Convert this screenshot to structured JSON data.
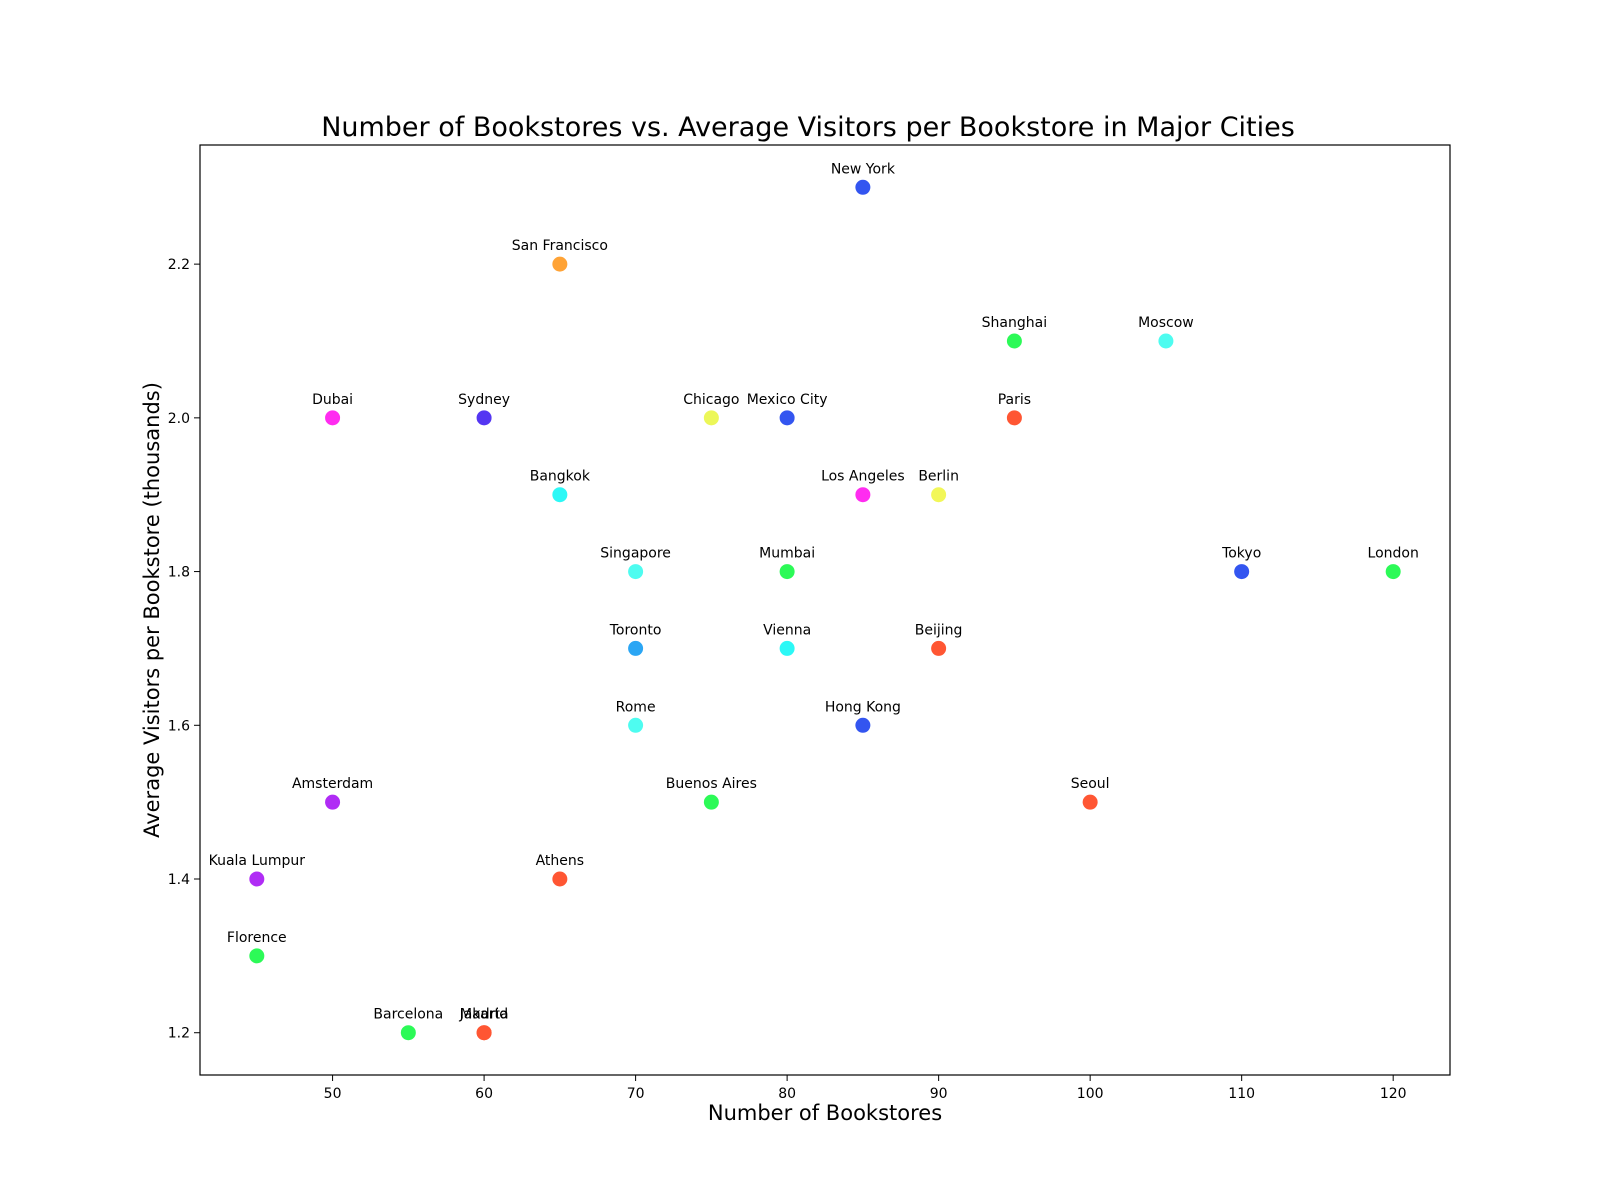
{
  "chart_data": {
    "type": "scatter",
    "title": "Number of Bookstores vs. Average Visitors per Bookstore in Major Cities",
    "xlabel": "Number of Bookstores",
    "ylabel": "Average Visitors per Bookstore (thousands)",
    "xlim": [
      41.25,
      123.75
    ],
    "ylim": [
      1.145,
      2.355
    ],
    "x_ticks": [
      50,
      60,
      70,
      80,
      90,
      100,
      110,
      120
    ],
    "y_ticks": [
      1.2,
      1.4,
      1.6,
      1.8,
      2.0,
      2.2
    ],
    "x_tick_labels": [
      "50",
      "60",
      "70",
      "80",
      "90",
      "100",
      "110",
      "120"
    ],
    "y_tick_labels": [
      "1.2",
      "1.4",
      "1.6",
      "1.8",
      "2.0",
      "2.2"
    ],
    "grid": false,
    "legend": "none",
    "points": [
      {
        "label": "New York",
        "x": 85,
        "y": 2.3,
        "color": "#3355f0"
      },
      {
        "label": "San Francisco",
        "x": 65,
        "y": 2.2,
        "color": "#ffa336"
      },
      {
        "label": "Shanghai",
        "x": 95,
        "y": 2.1,
        "color": "#2cfa57"
      },
      {
        "label": "Moscow",
        "x": 105,
        "y": 2.1,
        "color": "#4efcf0"
      },
      {
        "label": "Dubai",
        "x": 50,
        "y": 2.0,
        "color": "#ff2cf0"
      },
      {
        "label": "Sydney",
        "x": 60,
        "y": 2.0,
        "color": "#5436f2"
      },
      {
        "label": "Chicago",
        "x": 75,
        "y": 2.0,
        "color": "#ecf758"
      },
      {
        "label": "Mexico City",
        "x": 80,
        "y": 2.0,
        "color": "#3355f0"
      },
      {
        "label": "Paris",
        "x": 95,
        "y": 2.0,
        "color": "#ff5633"
      },
      {
        "label": "Bangkok",
        "x": 65,
        "y": 1.9,
        "color": "#2cf8f6"
      },
      {
        "label": "Los Angeles",
        "x": 85,
        "y": 1.9,
        "color": "#ff2cf0"
      },
      {
        "label": "Berlin",
        "x": 90,
        "y": 1.9,
        "color": "#f2f758"
      },
      {
        "label": "Singapore",
        "x": 70,
        "y": 1.8,
        "color": "#4efcf0"
      },
      {
        "label": "Mumbai",
        "x": 80,
        "y": 1.8,
        "color": "#2cfa57"
      },
      {
        "label": "Tokyo",
        "x": 110,
        "y": 1.8,
        "color": "#3355f0"
      },
      {
        "label": "London",
        "x": 120,
        "y": 1.8,
        "color": "#2cfa57"
      },
      {
        "label": "Toronto",
        "x": 70,
        "y": 1.7,
        "color": "#2ba6f4"
      },
      {
        "label": "Vienna",
        "x": 80,
        "y": 1.7,
        "color": "#2cf8f6"
      },
      {
        "label": "Beijing",
        "x": 90,
        "y": 1.7,
        "color": "#ff5633"
      },
      {
        "label": "Rome",
        "x": 70,
        "y": 1.6,
        "color": "#4efcf0"
      },
      {
        "label": "Hong Kong",
        "x": 85,
        "y": 1.6,
        "color": "#3355f0"
      },
      {
        "label": "Amsterdam",
        "x": 50,
        "y": 1.5,
        "color": "#b02cf5"
      },
      {
        "label": "Buenos Aires",
        "x": 75,
        "y": 1.5,
        "color": "#2cfa57"
      },
      {
        "label": "Seoul",
        "x": 100,
        "y": 1.5,
        "color": "#ff5633"
      },
      {
        "label": "Kuala Lumpur",
        "x": 45,
        "y": 1.4,
        "color": "#b02cf5"
      },
      {
        "label": "Athens",
        "x": 65,
        "y": 1.4,
        "color": "#ff5633"
      },
      {
        "label": "Florence",
        "x": 45,
        "y": 1.3,
        "color": "#2cfa57"
      },
      {
        "label": "Barcelona",
        "x": 55,
        "y": 1.2,
        "color": "#2cfa57"
      },
      {
        "label": "Jakarta",
        "x": 60,
        "y": 1.2,
        "color": "#ff5633"
      },
      {
        "label": "Madrid",
        "x": 60,
        "y": 1.2,
        "color": "#ff5633"
      }
    ]
  }
}
